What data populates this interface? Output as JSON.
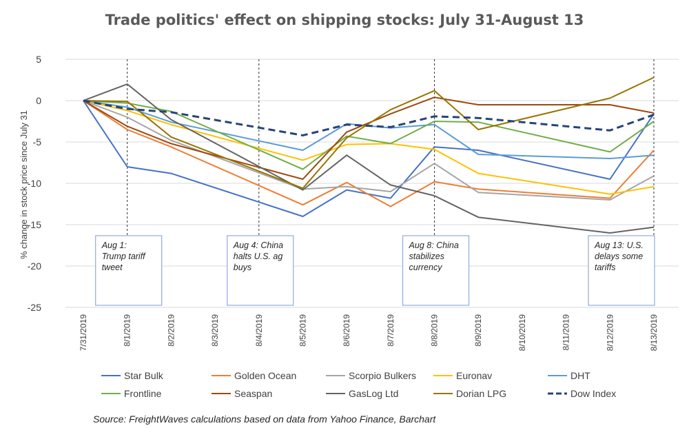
{
  "chart_data": {
    "type": "line",
    "title": "Trade politics' effect on shipping stocks: July 31-August 13",
    "ylabel": "% change in stock price since July 31",
    "xlabel": "",
    "ylim": [
      -25,
      5
    ],
    "yticks": [
      5,
      0,
      -5,
      -10,
      -15,
      -20,
      -25
    ],
    "categories": [
      "7/31/2019",
      "8/1/2019",
      "8/2/2019",
      "8/3/2019",
      "8/4/2019",
      "8/5/2019",
      "8/6/2019",
      "8/7/2019",
      "8/8/2019",
      "8/9/2019",
      "8/10/2019",
      "8/11/2019",
      "8/12/2019",
      "8/13/2019"
    ],
    "grid": "horizontal",
    "legend_position": "bottom",
    "series": [
      {
        "name": "Star Bulk",
        "color": "#4472C4",
        "dashed": false,
        "values": [
          0,
          -8.0,
          -8.8,
          null,
          null,
          -14.0,
          -10.8,
          -11.8,
          -5.6,
          -6.0,
          null,
          null,
          -9.5,
          -1.6
        ]
      },
      {
        "name": "Golden Ocean",
        "color": "#ED7D31",
        "dashed": false,
        "values": [
          0,
          -3.5,
          -5.6,
          null,
          null,
          -12.6,
          -9.9,
          -12.8,
          -9.8,
          -10.7,
          null,
          null,
          -11.8,
          -6.0
        ]
      },
      {
        "name": "Scorpio Bulkers",
        "color": "#A5A5A5",
        "dashed": false,
        "values": [
          0,
          -2.0,
          -4.8,
          null,
          null,
          -10.7,
          -10.4,
          -11.0,
          -7.6,
          -11.1,
          null,
          null,
          -12.0,
          -9.1
        ]
      },
      {
        "name": "Euronav",
        "color": "#FFC000",
        "dashed": false,
        "values": [
          0,
          -1.2,
          -2.9,
          null,
          null,
          -7.2,
          -5.3,
          -5.2,
          -5.9,
          -8.8,
          null,
          null,
          -11.3,
          -10.4
        ]
      },
      {
        "name": "DHT",
        "color": "#5B9BD5",
        "dashed": false,
        "values": [
          0,
          -0.8,
          -2.6,
          null,
          null,
          -6.0,
          -2.8,
          -3.3,
          -2.9,
          -6.5,
          null,
          null,
          -7.0,
          -6.6
        ]
      },
      {
        "name": "Frontline",
        "color": "#70AD47",
        "dashed": false,
        "values": [
          0,
          -0.3,
          -1.3,
          null,
          null,
          -8.3,
          -4.3,
          -5.2,
          -2.5,
          -2.6,
          null,
          null,
          -6.2,
          -2.5
        ]
      },
      {
        "name": "Seaspan",
        "color": "#9E480E",
        "dashed": false,
        "values": [
          0,
          -3.1,
          -5.2,
          null,
          null,
          -9.5,
          -3.8,
          -1.6,
          0.4,
          -0.5,
          null,
          null,
          -0.5,
          -1.5
        ]
      },
      {
        "name": "GasLog Ltd",
        "color": "#636363",
        "dashed": false,
        "values": [
          0,
          2.0,
          -2.3,
          null,
          null,
          -10.8,
          -6.6,
          -10.2,
          -11.5,
          -14.1,
          null,
          null,
          -16.0,
          -15.3
        ]
      },
      {
        "name": "Dorian LPG",
        "color": "#997300",
        "dashed": false,
        "values": [
          0,
          -0.1,
          -4.4,
          null,
          null,
          -10.6,
          -4.5,
          -1.1,
          1.2,
          -3.5,
          null,
          null,
          0.3,
          2.8
        ]
      },
      {
        "name": "Dow Index",
        "color": "#264478",
        "dashed": true,
        "values": [
          0,
          -1.0,
          -1.4,
          null,
          null,
          -4.2,
          -2.9,
          -3.2,
          -1.9,
          -2.1,
          null,
          null,
          -3.6,
          -1.7
        ]
      }
    ],
    "vlines": [
      "8/1/2019",
      "8/4/2019",
      "8/8/2019",
      "8/13/2019"
    ],
    "annotations": [
      {
        "at": "8/1/2019",
        "text": [
          "Aug 1:",
          "Trump tariff",
          "tweet"
        ]
      },
      {
        "at": "8/4/2019",
        "text": [
          "Aug 4: China",
          "halts U.S. ag",
          "buys"
        ]
      },
      {
        "at": "8/8/2019",
        "text": [
          "Aug 8: China",
          "stabilizes",
          "currency"
        ]
      },
      {
        "at": "8/13/2019",
        "text": [
          "Aug 13: U.S.",
          "delays some",
          "tariffs"
        ]
      }
    ],
    "source": "Source: FreightWaves calculations based on data from Yahoo Finance, Barchart"
  }
}
